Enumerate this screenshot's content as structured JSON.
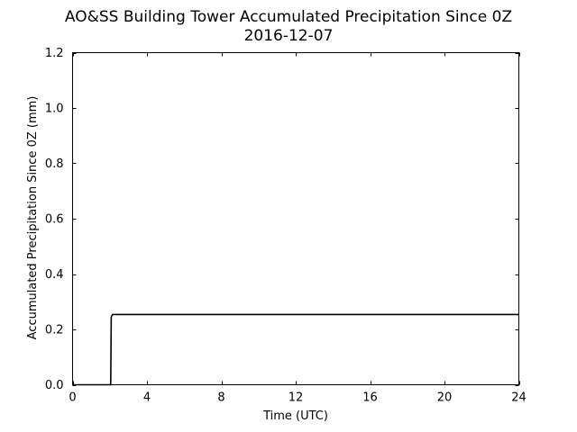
{
  "chart_data": {
    "type": "line",
    "title": "AO&SS Building Tower Accumulated Precipitation Since 0Z",
    "subtitle": "2016-12-07",
    "xlabel": "Time (UTC)",
    "ylabel": "Accumulated Precipitation Since 0Z (mm)",
    "xlim": [
      0,
      24
    ],
    "ylim": [
      0,
      1.2
    ],
    "xticks": [
      0,
      4,
      8,
      12,
      16,
      20,
      24
    ],
    "xtick_labels": [
      "0",
      "4",
      "8",
      "12",
      "16",
      "20",
      "24"
    ],
    "yticks": [
      0.0,
      0.2,
      0.4,
      0.6,
      0.8,
      1.0,
      1.2
    ],
    "ytick_labels": [
      "0.0",
      "0.2",
      "0.4",
      "0.6",
      "0.8",
      "1.0",
      "1.2"
    ],
    "grid": false,
    "line_color": "#000000",
    "series": [
      {
        "x": [
          0,
          2.05,
          2.08,
          2.15,
          24
        ],
        "y": [
          0,
          0,
          0.245,
          0.254,
          0.254
        ]
      }
    ]
  }
}
